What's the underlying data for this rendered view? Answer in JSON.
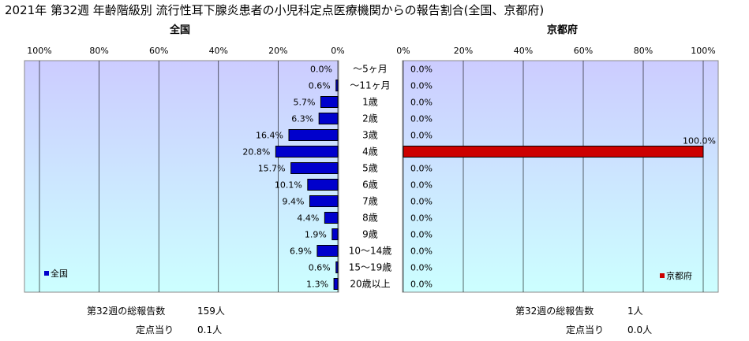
{
  "title": "2021年 第32週 年齢階級別 流行性耳下腺炎患者の小児科定点医療機関からの報告割合(全国、京都府)",
  "chart_data": [
    {
      "type": "bar",
      "orientation": "horizontal",
      "direction": "right-to-left",
      "panel_title": "全国",
      "categories": [
        "～5ヶ月",
        "～11ヶ月",
        "1歳",
        "2歳",
        "3歳",
        "4歳",
        "5歳",
        "6歳",
        "7歳",
        "8歳",
        "9歳",
        "10～14歳",
        "15～19歳",
        "20歳以上"
      ],
      "series": [
        {
          "name": "全国",
          "color": "#0000cc",
          "values": [
            0.0,
            0.6,
            5.7,
            6.3,
            16.4,
            20.8,
            15.7,
            10.1,
            9.4,
            4.4,
            1.9,
            6.9,
            0.6,
            1.3
          ]
        }
      ],
      "value_labels": [
        "0.0%",
        "0.6%",
        "5.7%",
        "6.3%",
        "16.4%",
        "20.8%",
        "15.7%",
        "10.1%",
        "9.4%",
        "4.4%",
        "1.9%",
        "6.9%",
        "0.6%",
        "1.3%"
      ],
      "xlim": [
        0,
        100
      ],
      "xticks": [
        "100%",
        "80%",
        "60%",
        "40%",
        "20%",
        "0%"
      ],
      "grid": true,
      "legend": "bottom-left",
      "legend_label": "全国"
    },
    {
      "type": "bar",
      "orientation": "horizontal",
      "direction": "left-to-right",
      "panel_title": "京都府",
      "categories": [
        "～5ヶ月",
        "～11ヶ月",
        "1歳",
        "2歳",
        "3歳",
        "4歳",
        "5歳",
        "6歳",
        "7歳",
        "8歳",
        "9歳",
        "10～14歳",
        "15～19歳",
        "20歳以上"
      ],
      "series": [
        {
          "name": "京都府",
          "color": "#cc0000",
          "values": [
            0,
            0,
            0,
            0,
            0,
            100.0,
            0,
            0,
            0,
            0,
            0,
            0,
            0,
            0
          ]
        }
      ],
      "value_labels": [
        "0.0%",
        "0.0%",
        "0.0%",
        "0.0%",
        "0.0%",
        "100.0%",
        "0.0%",
        "0.0%",
        "0.0%",
        "0.0%",
        "0.0%",
        "0.0%",
        "0.0%",
        "0.0%"
      ],
      "xlim": [
        0,
        100
      ],
      "xticks": [
        "0%",
        "20%",
        "40%",
        "60%",
        "80%",
        "100%"
      ],
      "grid": true,
      "legend": "bottom-right",
      "legend_label": "京都府"
    }
  ],
  "summary": {
    "national": {
      "total_label": "第32週の総報告数",
      "total_value": "159人",
      "per_label": "定点当り",
      "per_value": "0.1人"
    },
    "kyoto": {
      "total_label": "第32週の総報告数",
      "total_value": "1人",
      "per_label": "定点当り",
      "per_value": "0.0人"
    }
  },
  "colors": {
    "plot_top": "#ccccff",
    "plot_bottom": "#ccffff",
    "grid": "#000000"
  }
}
